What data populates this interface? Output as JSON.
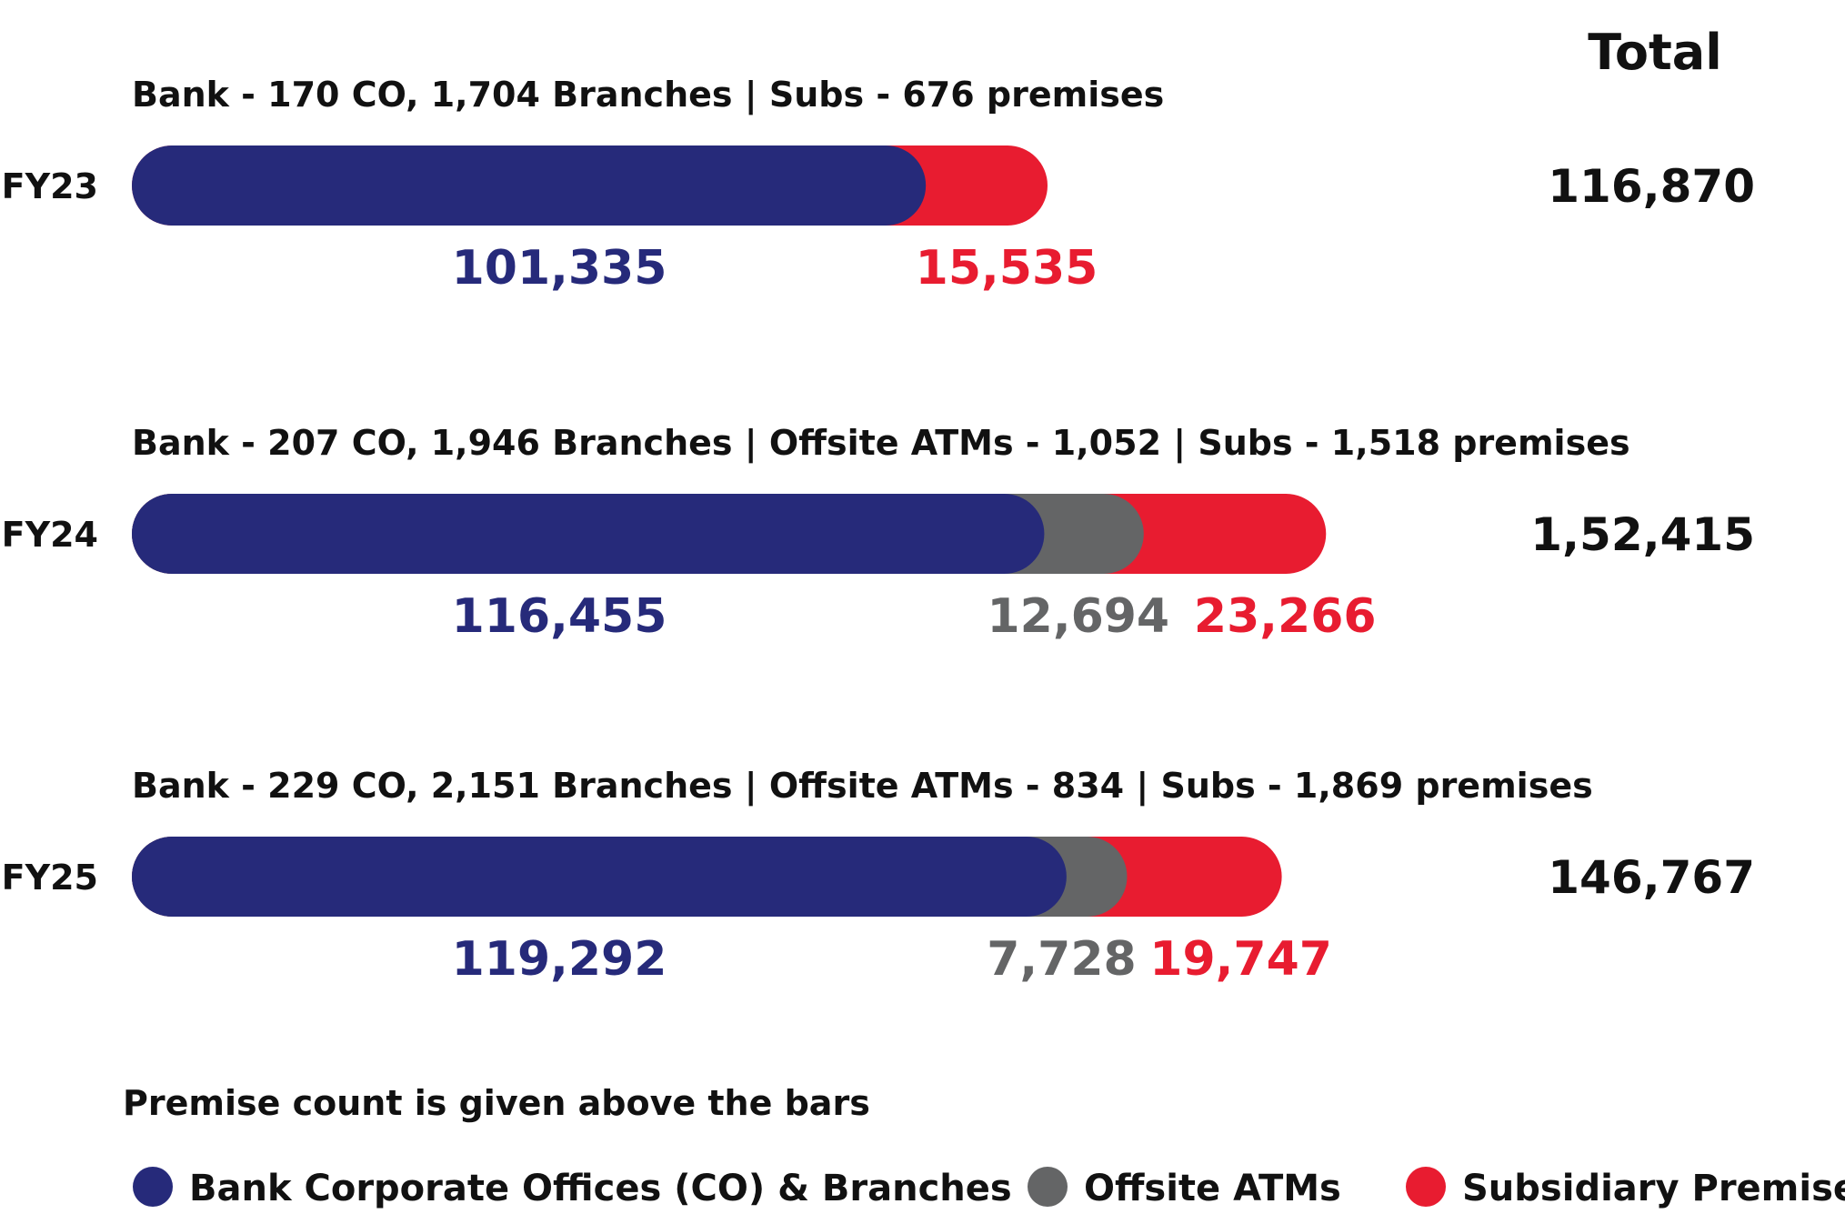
{
  "chart_data": {
    "type": "bar",
    "orientation": "horizontal",
    "stacked": true,
    "total_header": "Total",
    "categories": [
      "FY23",
      "FY24",
      "FY25"
    ],
    "captions": [
      "Bank - 170 CO, 1,704 Branches | Subs - 676 premises",
      "Bank - 207 CO, 1,946 Branches | Offsite ATMs - 1,052 | Subs - 1,518 premises",
      "Bank - 229 CO, 2,151 Branches | Offsite ATMs - 834 | Subs - 1,869 premises"
    ],
    "series": [
      {
        "name": "Bank Corporate Offices (CO) & Branches",
        "color": "#262a7a",
        "values": [
          101335,
          116455,
          119292
        ],
        "labels": [
          "101,335",
          "116,455",
          "119,292"
        ]
      },
      {
        "name": "Offsite ATMs",
        "color": "#646566",
        "values": [
          0,
          12694,
          7728
        ],
        "labels": [
          "",
          "12,694",
          "7,728"
        ]
      },
      {
        "name": "Subsidiary Premises",
        "color": "#e81c30",
        "values": [
          15535,
          23266,
          19747
        ],
        "labels": [
          "15,535",
          "23,266",
          "19,747"
        ]
      }
    ],
    "totals": [
      116870,
      152415,
      146767
    ],
    "total_labels": [
      "116,870",
      "1,52,415",
      "146,767"
    ],
    "note": "Premise count is given above the bars",
    "legend_position": "bottom",
    "grid": false,
    "xlim": [
      0,
      200000
    ]
  }
}
